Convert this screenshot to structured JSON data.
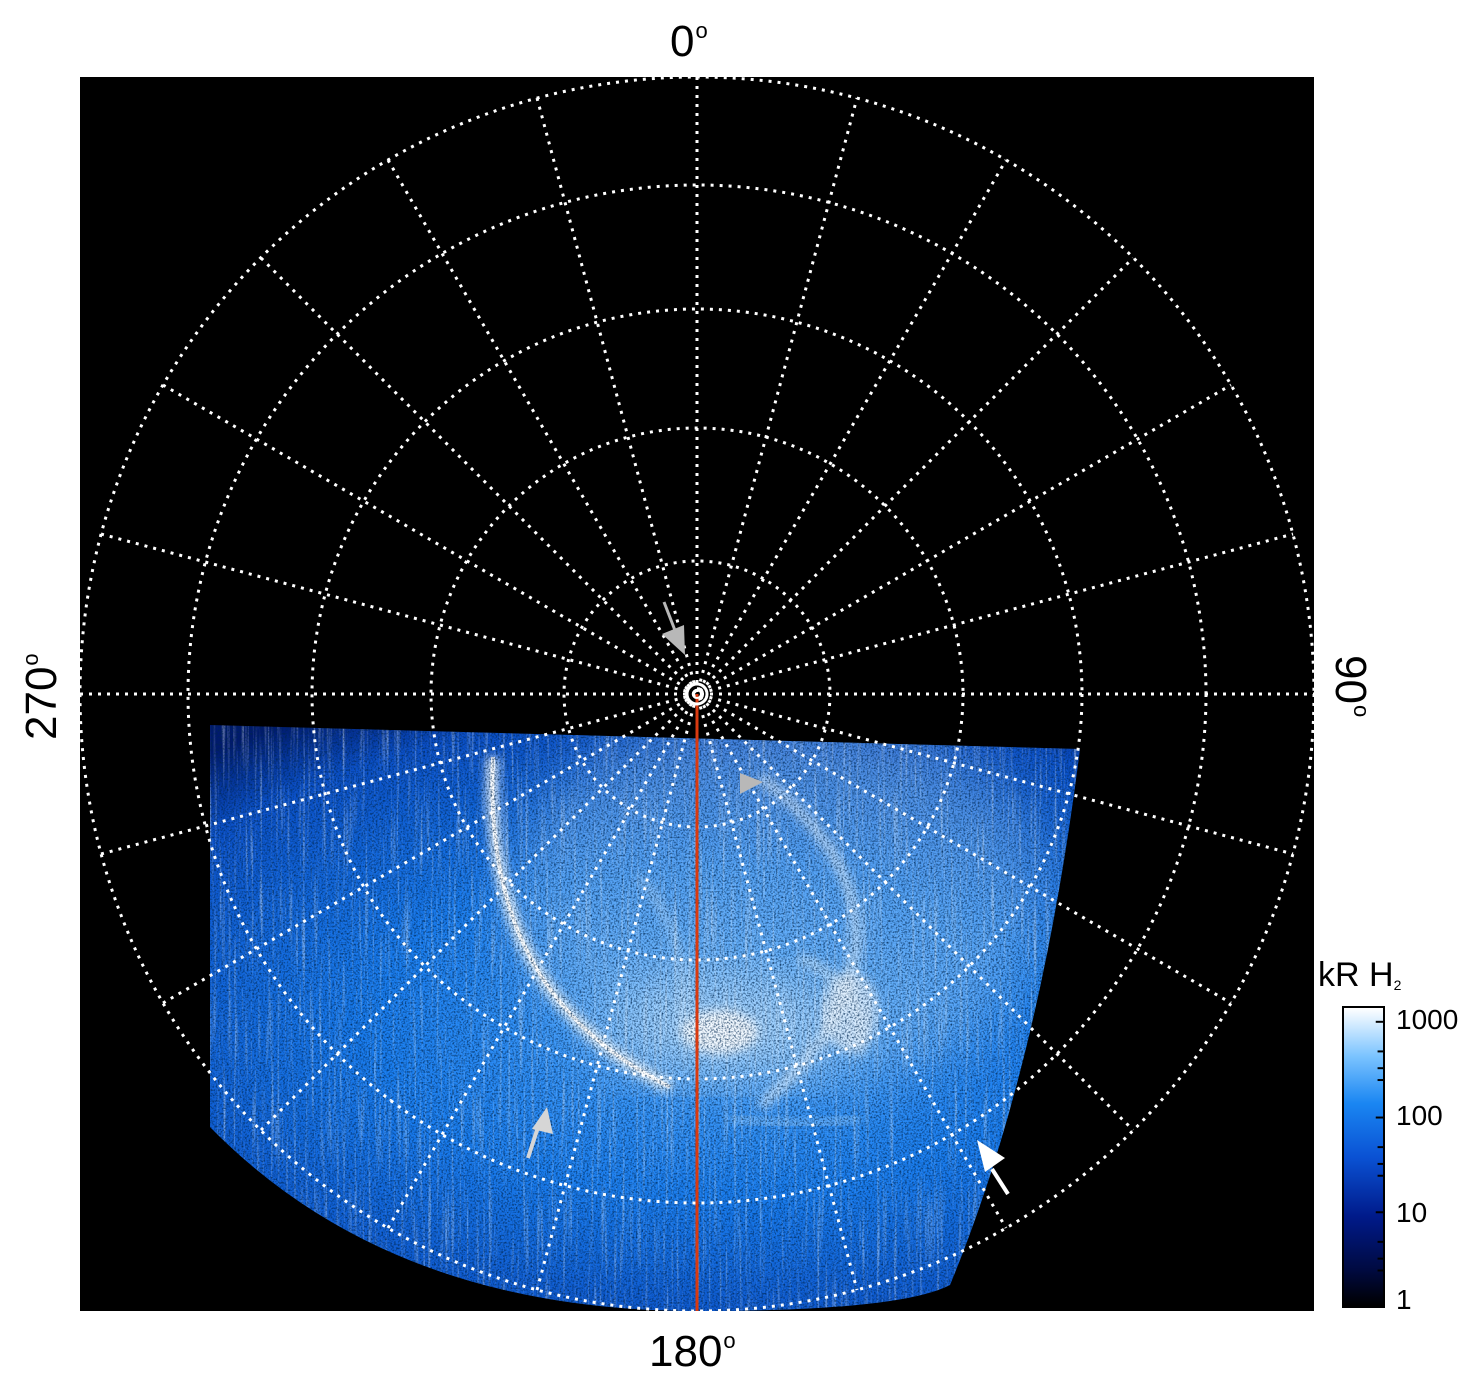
{
  "labels": {
    "top": "0",
    "right": "90",
    "bottom": "180",
    "left": "270",
    "degree_symbol": "o"
  },
  "colorbar": {
    "title": "kR H",
    "title_subscript": "2",
    "ticks": [
      "1000",
      "100",
      "10",
      "1"
    ]
  },
  "colors": {
    "background": "#000000",
    "grid": "#ffffff",
    "meridian_line": "#d93a10",
    "aurora_dark": "#001a6e",
    "aurora_mid": "#1a7ef0",
    "aurora_bright": "#eaf6ff",
    "arrow_grey": "#b8b8b8",
    "arrow_white": "#ffffff"
  },
  "icons": [
    "arrow-gray-top",
    "arrow-gray-right",
    "arrow-gray-bottom-left",
    "arrow-white-bottom-right",
    "pole-marker"
  ]
}
